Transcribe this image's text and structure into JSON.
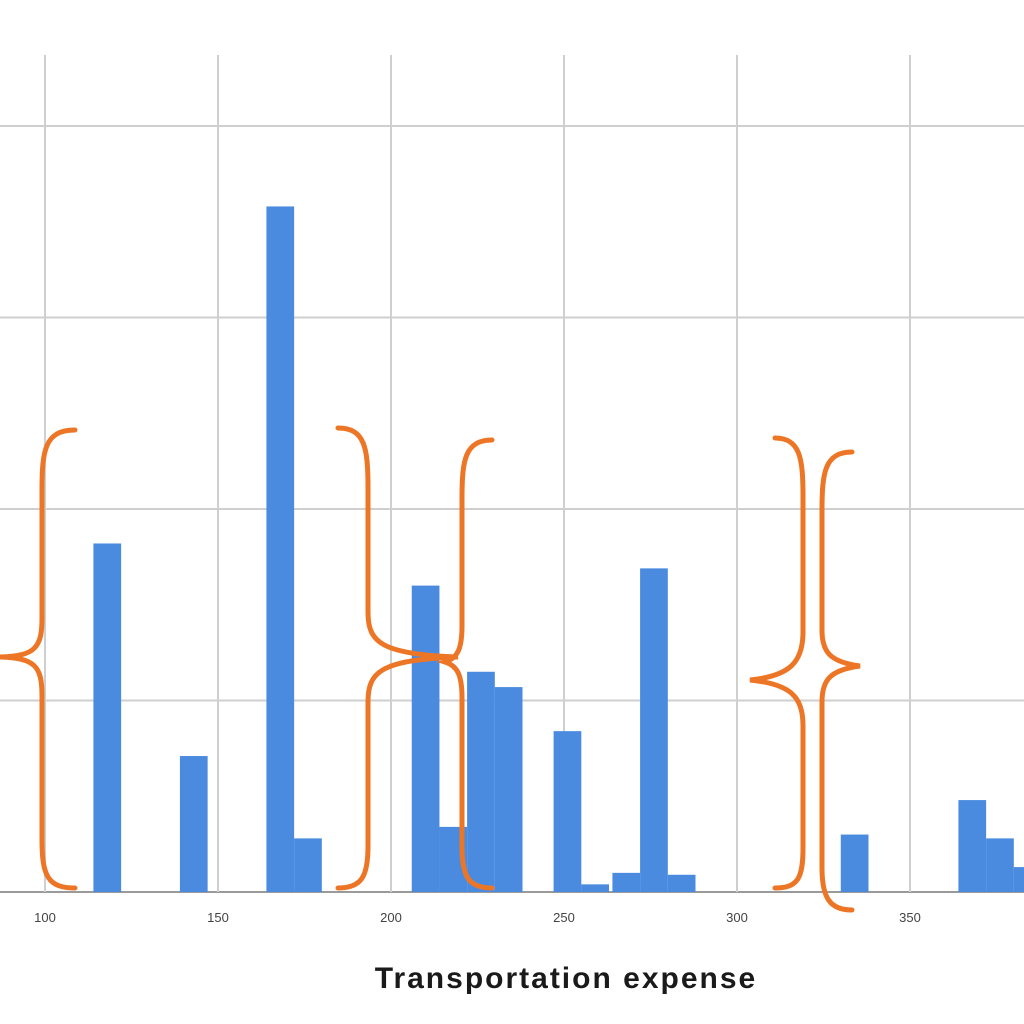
{
  "colors": {
    "bar": "#4a8be0",
    "grid": "#cfcfcf",
    "axis": "#9a9a9a",
    "annotation": "#ed7626",
    "background": "#ffffff"
  },
  "chart_data": {
    "type": "bar",
    "title": "",
    "xlabel": "Transportation expense",
    "ylabel": "",
    "grid": true,
    "legend": "none",
    "xlim": [
      94,
      385
    ],
    "ylim": [
      0,
      4
    ],
    "x_ticks": [
      100,
      150,
      200,
      250,
      300,
      350
    ],
    "x_tick_labels": [
      "100",
      "150",
      "200",
      "250",
      "300",
      "350"
    ],
    "bin_width": 8.3,
    "series": [
      {
        "bins": [
          {
            "x": 118,
            "value": 1.82
          },
          {
            "x": 143,
            "value": 0.71
          },
          {
            "x": 168,
            "value": 3.58
          },
          {
            "x": 176,
            "value": 0.28
          },
          {
            "x": 210,
            "value": 1.6
          },
          {
            "x": 218,
            "value": 0.34
          },
          {
            "x": 226,
            "value": 1.15
          },
          {
            "x": 234,
            "value": 1.07
          },
          {
            "x": 251,
            "value": 0.84
          },
          {
            "x": 259,
            "value": 0.04
          },
          {
            "x": 268,
            "value": 0.1
          },
          {
            "x": 276,
            "value": 1.69
          },
          {
            "x": 284,
            "value": 0.09
          },
          {
            "x": 334,
            "value": 0.3
          },
          {
            "x": 368,
            "value": 0.48
          },
          {
            "x": 376,
            "value": 0.28
          },
          {
            "x": 384,
            "value": 0.13
          }
        ]
      }
    ]
  }
}
